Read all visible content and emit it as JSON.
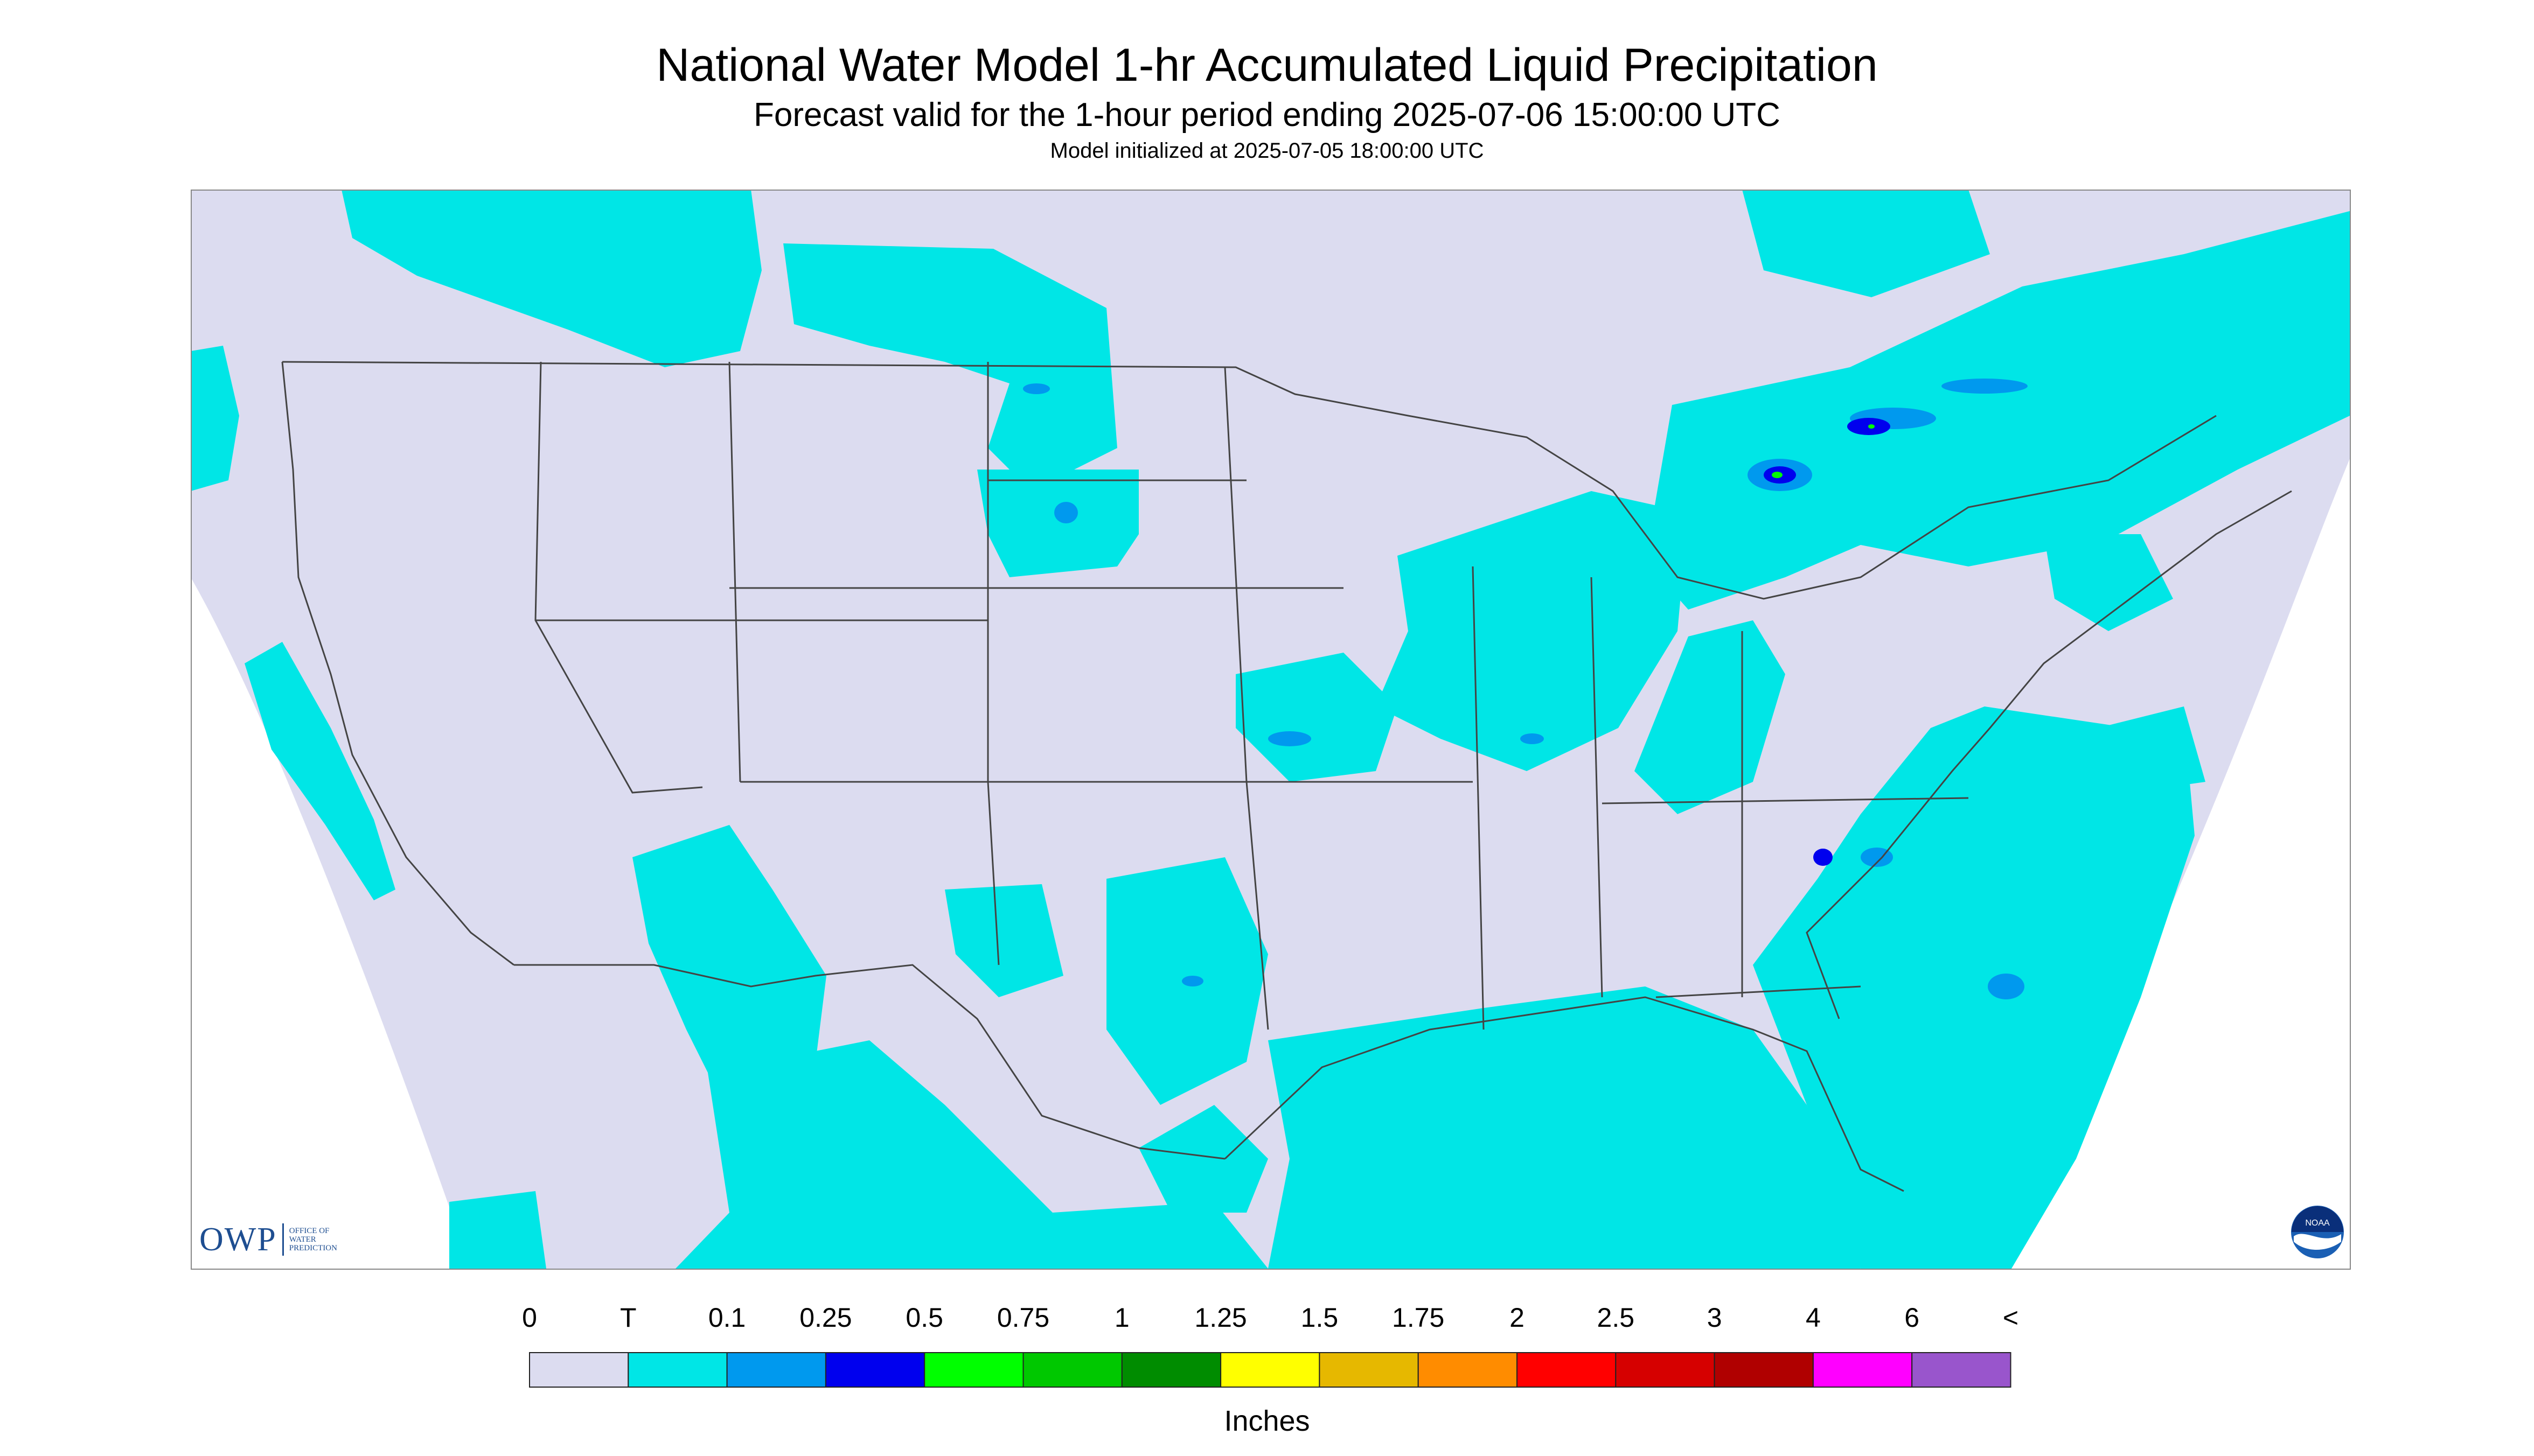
{
  "title": "National Water Model 1-hr Accumulated Liquid Precipitation",
  "subtitle": "Forecast valid for the 1-hour period ending 2025-07-06 15:00:00 UTC",
  "init_line": "Model initialized at 2025-07-05 18:00:00 UTC",
  "legend": {
    "units": "Inches",
    "labels": [
      "0",
      "T",
      "0.1",
      "0.25",
      "0.5",
      "0.75",
      "1",
      "1.25",
      "1.5",
      "1.75",
      "2",
      "2.5",
      "3",
      "4",
      "6",
      "<"
    ],
    "colors": [
      "#dcdcf0",
      "#00e6e6",
      "#0099ee",
      "#0000ee",
      "#00ff00",
      "#00c800",
      "#008c00",
      "#ffff00",
      "#e6b800",
      "#ff8c00",
      "#ff0000",
      "#d60000",
      "#b00000",
      "#ff00ff",
      "#9955cc"
    ]
  },
  "logos": {
    "owp_text": "OWP",
    "owp_subtext": [
      "OFFICE OF",
      "WATER",
      "PREDICTION"
    ],
    "noaa_text": "NOAA"
  },
  "colors": {
    "no_precip": "#dcdcf0",
    "trace": "#00e6e6",
    "light": "#0099ee",
    "moderate": "#0000ee",
    "heavy": "#00ff00",
    "border_lines": "#444444"
  }
}
